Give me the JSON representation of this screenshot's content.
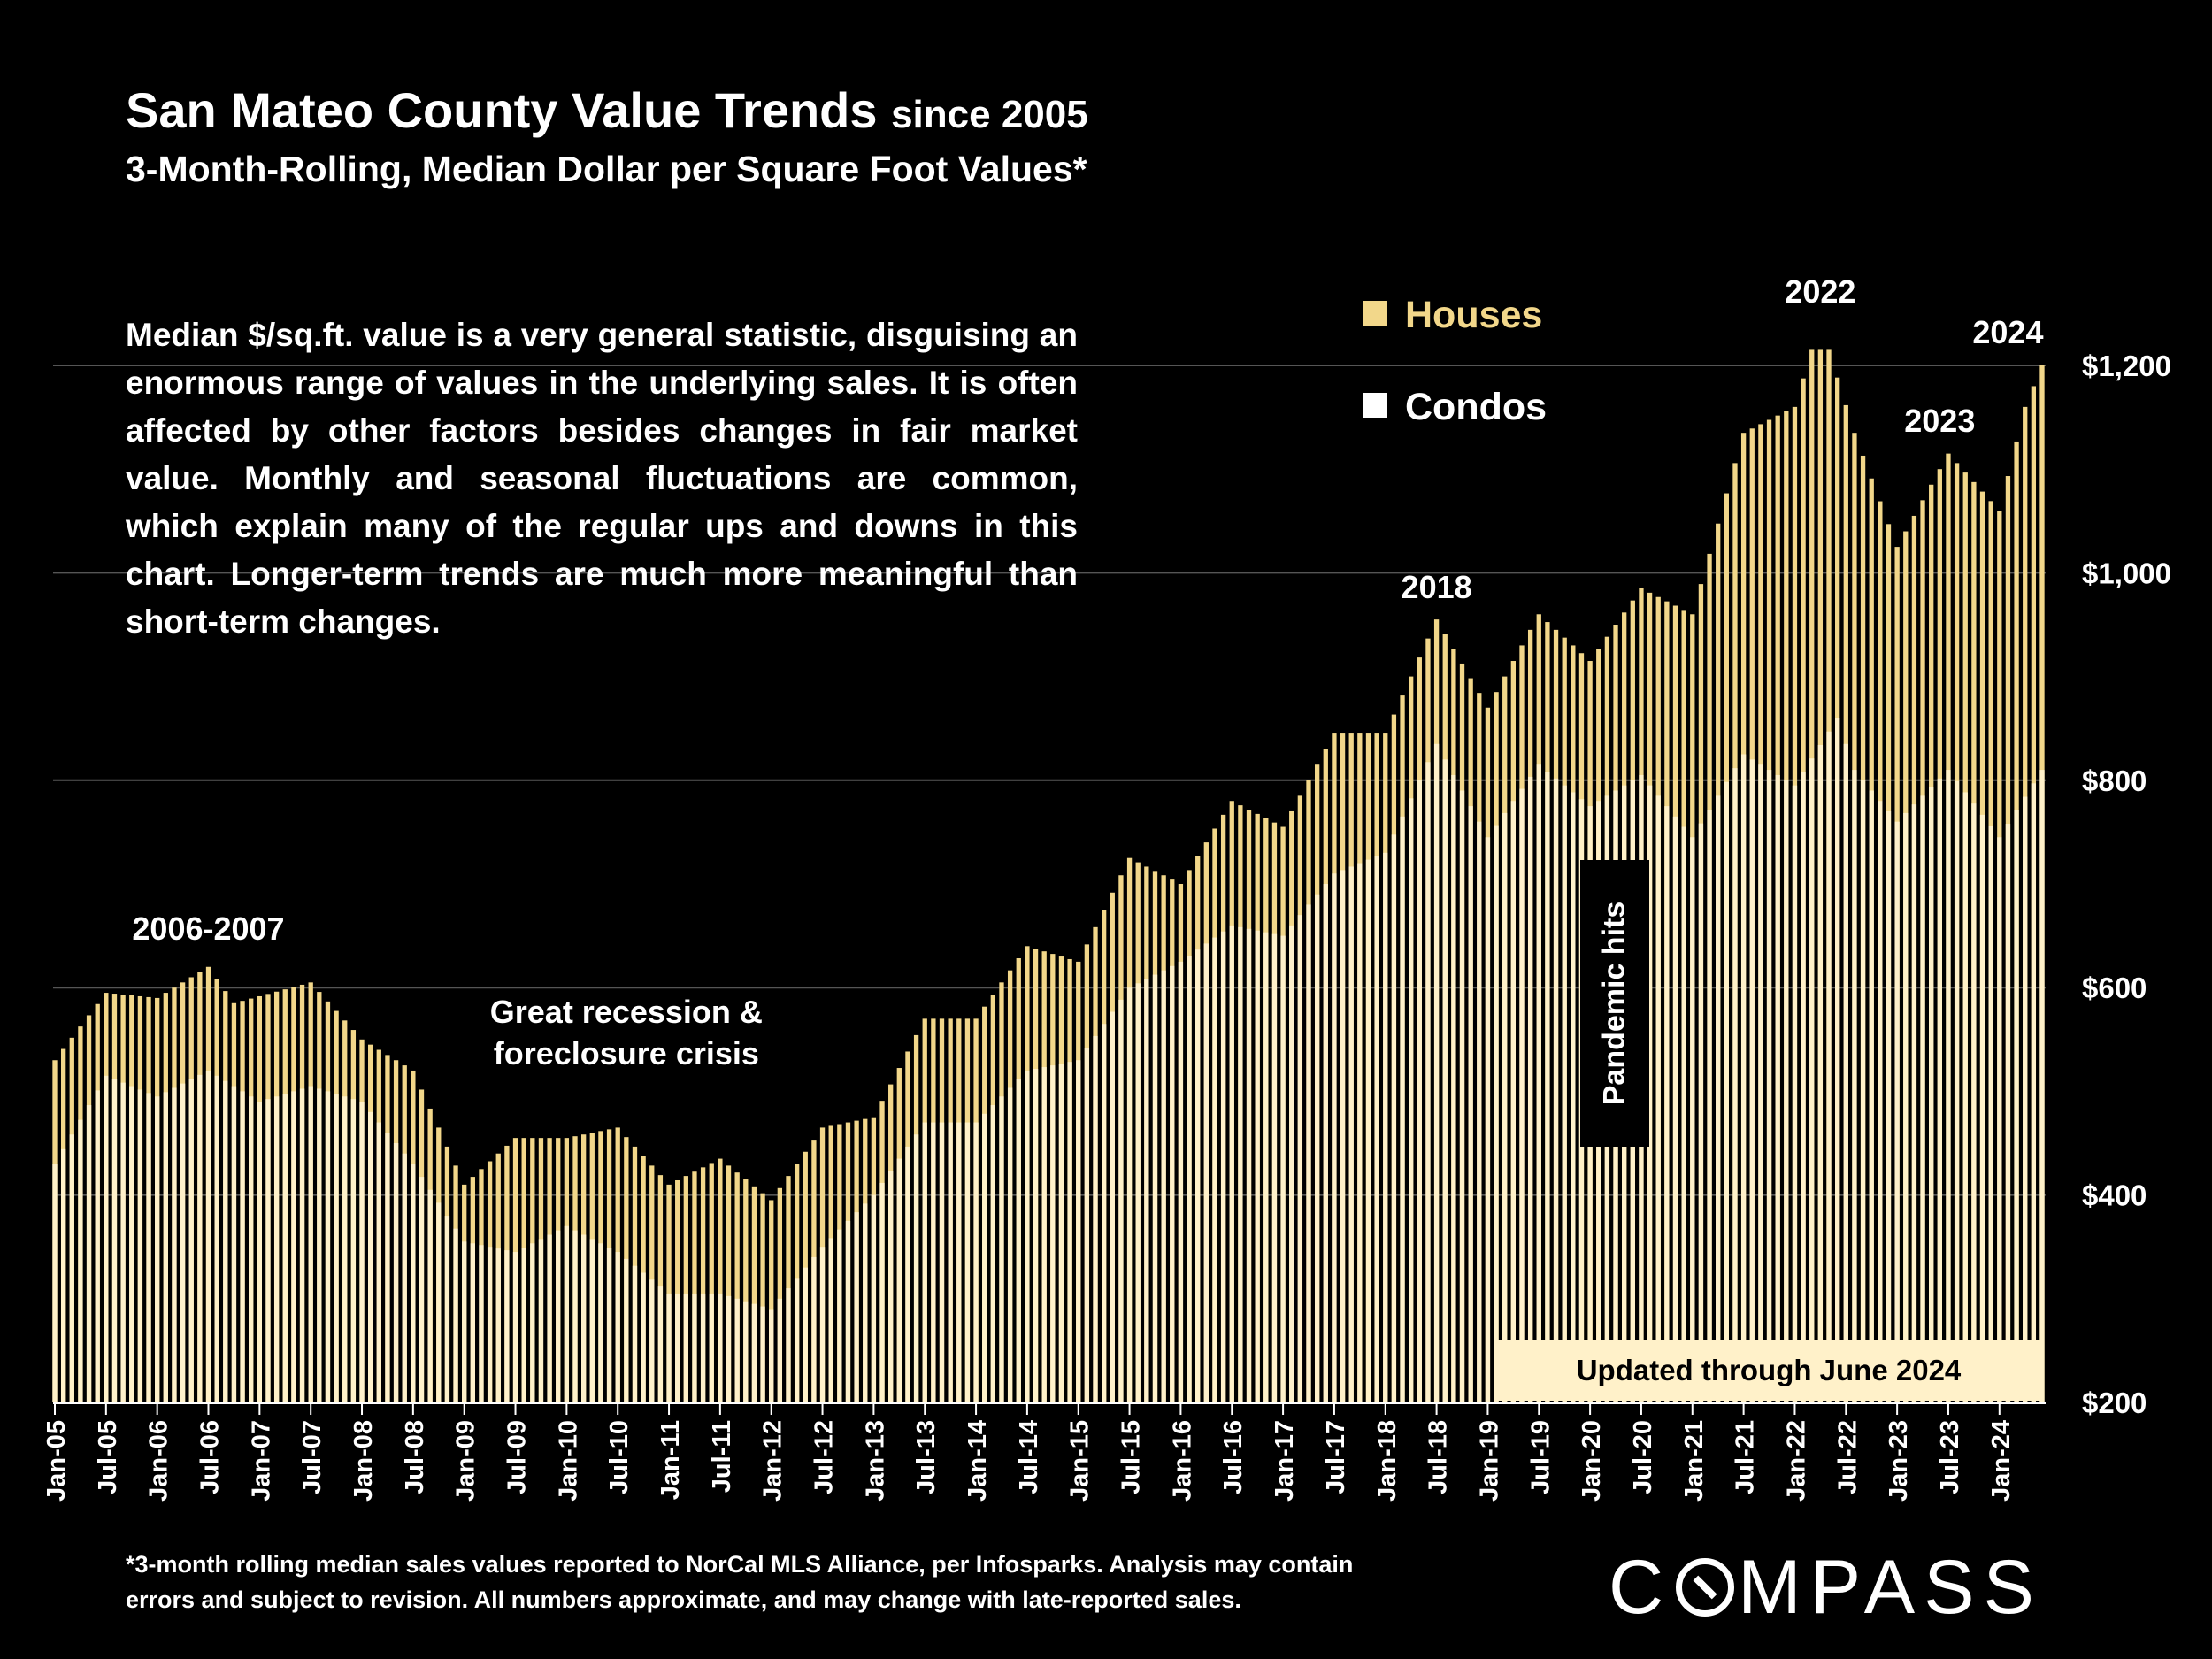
{
  "header": {
    "title": "San Mateo County Value Trends",
    "title_suffix": "since 2005",
    "subtitle": "3-Month-Rolling, Median Dollar per Square Foot Values*"
  },
  "note": "Median $/sq.ft. value is a very general statistic, disguising an enormous range of values in the underlying sales. It is often affected by other factors besides changes in fair market value. Monthly and seasonal fluctuations are common, which explain many of the regular ups and downs in this chart. Longer-term trends are much more meaningful than short-term changes.",
  "footnote": {
    "line1": "*3-month rolling median sales values reported to NorCal MLS Alliance, per Infosparks. Analysis may contain",
    "line2": "errors and subject to revision. All numbers approximate, and may change with late-reported sales."
  },
  "logo": {
    "left": "C",
    "right": "MPASS"
  },
  "updated_label": "Updated through June 2024",
  "colors": {
    "houses": "#f2d78a",
    "condos": "#fff1c9",
    "background": "#000000",
    "grid": "#555555"
  },
  "chart_data": {
    "type": "bar",
    "x_start": "2005-01",
    "x_end": "2024-06",
    "x_tick_labels": [
      "Jan-05",
      "Jul-05",
      "Jan-06",
      "Jul-06",
      "Jan-07",
      "Jul-07",
      "Jan-08",
      "Jul-08",
      "Jan-09",
      "Jul-09",
      "Jan-10",
      "Jul-10",
      "Jan-11",
      "Jul-11",
      "Jan-12",
      "Jul-12",
      "Jan-13",
      "Jul-13",
      "Jan-14",
      "Jul-14",
      "Jan-15",
      "Jul-15",
      "Jan-16",
      "Jul-16",
      "Jan-17",
      "Jul-17",
      "Jan-18",
      "Jul-18",
      "Jan-19",
      "Jul-19",
      "Jan-20",
      "Jul-20",
      "Jan-21",
      "Jul-21",
      "Jan-22",
      "Jul-22",
      "Jan-23",
      "Jul-23",
      "Jan-24"
    ],
    "y_tick_labels": [
      "$200",
      "$400",
      "$600",
      "$800",
      "$1,000",
      "$1,200"
    ],
    "ylim": [
      200,
      1200
    ],
    "grid": true,
    "legend_position": "top-right",
    "series": [
      {
        "name": "Houses",
        "anchors": [
          [
            "2005-01",
            530
          ],
          [
            "2005-07",
            595
          ],
          [
            "2006-01",
            590
          ],
          [
            "2006-07",
            620
          ],
          [
            "2006-10",
            585
          ],
          [
            "2007-07",
            605
          ],
          [
            "2008-01",
            550
          ],
          [
            "2008-07",
            520
          ],
          [
            "2009-01",
            410
          ],
          [
            "2009-07",
            455
          ],
          [
            "2010-01",
            455
          ],
          [
            "2010-07",
            465
          ],
          [
            "2011-01",
            410
          ],
          [
            "2011-07",
            435
          ],
          [
            "2012-01",
            395
          ],
          [
            "2012-07",
            465
          ],
          [
            "2013-01",
            475
          ],
          [
            "2013-07",
            570
          ],
          [
            "2014-01",
            570
          ],
          [
            "2014-07",
            640
          ],
          [
            "2015-01",
            625
          ],
          [
            "2015-07",
            725
          ],
          [
            "2016-01",
            700
          ],
          [
            "2016-07",
            780
          ],
          [
            "2017-01",
            755
          ],
          [
            "2017-07",
            845
          ],
          [
            "2018-01",
            845
          ],
          [
            "2018-07",
            955
          ],
          [
            "2019-01",
            870
          ],
          [
            "2019-07",
            960
          ],
          [
            "2020-01",
            915
          ],
          [
            "2020-07",
            985
          ],
          [
            "2021-01",
            960
          ],
          [
            "2021-07",
            1135
          ],
          [
            "2022-01",
            1160
          ],
          [
            "2022-03",
            1215
          ],
          [
            "2022-05",
            1215
          ],
          [
            "2022-08",
            1135
          ],
          [
            "2023-01",
            1025
          ],
          [
            "2023-07",
            1115
          ],
          [
            "2024-01",
            1060
          ],
          [
            "2024-04",
            1160
          ],
          [
            "2024-06",
            1200
          ]
        ]
      },
      {
        "name": "Condos",
        "anchors": [
          [
            "2005-01",
            430
          ],
          [
            "2005-07",
            515
          ],
          [
            "2006-01",
            495
          ],
          [
            "2006-07",
            520
          ],
          [
            "2007-01",
            490
          ],
          [
            "2007-07",
            505
          ],
          [
            "2008-01",
            490
          ],
          [
            "2008-07",
            430
          ],
          [
            "2009-01",
            355
          ],
          [
            "2009-07",
            345
          ],
          [
            "2010-01",
            370
          ],
          [
            "2010-07",
            345
          ],
          [
            "2011-01",
            305
          ],
          [
            "2011-07",
            305
          ],
          [
            "2012-01",
            290
          ],
          [
            "2012-07",
            350
          ],
          [
            "2013-01",
            400
          ],
          [
            "2013-07",
            470
          ],
          [
            "2014-01",
            470
          ],
          [
            "2014-07",
            520
          ],
          [
            "2015-01",
            530
          ],
          [
            "2015-07",
            600
          ],
          [
            "2016-01",
            625
          ],
          [
            "2016-07",
            660
          ],
          [
            "2017-01",
            650
          ],
          [
            "2017-07",
            710
          ],
          [
            "2018-01",
            730
          ],
          [
            "2018-07",
            835
          ],
          [
            "2019-01",
            745
          ],
          [
            "2019-07",
            815
          ],
          [
            "2020-01",
            775
          ],
          [
            "2020-07",
            805
          ],
          [
            "2021-01",
            745
          ],
          [
            "2021-07",
            825
          ],
          [
            "2022-01",
            795
          ],
          [
            "2022-06",
            860
          ],
          [
            "2022-08",
            810
          ],
          [
            "2023-01",
            760
          ],
          [
            "2023-07",
            810
          ],
          [
            "2024-01",
            745
          ],
          [
            "2024-06",
            810
          ]
        ]
      }
    ],
    "annotations": [
      {
        "text": "2006-2007",
        "x": "2006-07",
        "y": 640
      },
      {
        "text": "Great recession &",
        "x": "2010-08",
        "y": 560
      },
      {
        "text": "foreclosure crisis",
        "x": "2010-08",
        "y": 520
      },
      {
        "text": "2018",
        "x": "2018-07",
        "y": 970
      },
      {
        "text": "Pandemic hits",
        "x": "2020-04",
        "y": 640
      },
      {
        "text": "2022",
        "x": "2022-04",
        "y": 1255
      },
      {
        "text": "2023",
        "x": "2023-06",
        "y": 1130
      },
      {
        "text": "2024",
        "x": "2024-02",
        "y": 1215
      }
    ]
  }
}
